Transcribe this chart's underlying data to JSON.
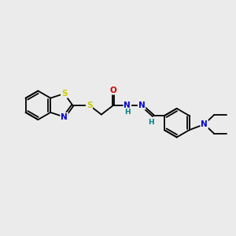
{
  "bg_color": "#ebebeb",
  "bond_color": "#000000",
  "bond_width": 1.3,
  "atom_colors": {
    "S": "#cccc00",
    "N": "#0000cc",
    "O": "#cc0000",
    "H_teal": "#008080",
    "C": "#000000"
  },
  "font_size_atom": 7.5,
  "fig_width": 3.0,
  "fig_height": 3.0,
  "dpi": 100,
  "xlim": [
    0,
    10
  ],
  "ylim": [
    0,
    10
  ]
}
